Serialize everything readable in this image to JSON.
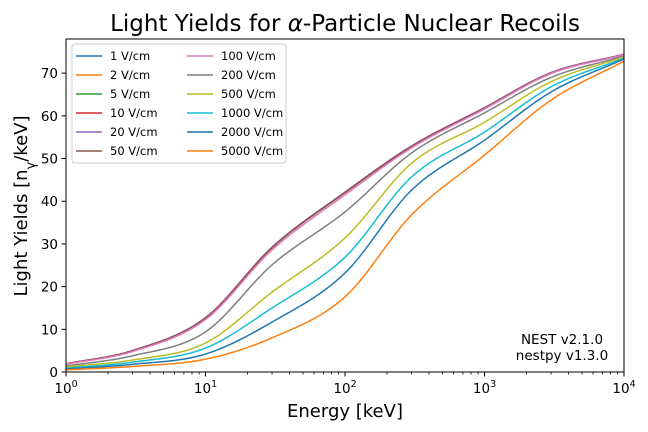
{
  "chart_data": {
    "type": "line",
    "title_prefix": "Light Yields for ",
    "title_symbol": "α",
    "title_suffix": "-Particle Nuclear Recoils",
    "xlabel": "Energy [keV]",
    "ylabel_prefix": "Light Yields [n",
    "ylabel_sub": "γ",
    "ylabel_suffix": "/keV]",
    "xscale": "log",
    "xlim": [
      1,
      10000
    ],
    "ylim": [
      0,
      78
    ],
    "x_ticks": [
      {
        "value": 1,
        "base": "10",
        "exp": "0"
      },
      {
        "value": 10,
        "base": "10",
        "exp": "1"
      },
      {
        "value": 100,
        "base": "10",
        "exp": "2"
      },
      {
        "value": 1000,
        "base": "10",
        "exp": "3"
      },
      {
        "value": 10000,
        "base": "10",
        "exp": "4"
      }
    ],
    "y_ticks": [
      0,
      10,
      20,
      30,
      40,
      50,
      60,
      70
    ],
    "grid": false,
    "legend": {
      "placement": "top-left",
      "columns": 2
    },
    "annotation": [
      "NEST v2.1.0",
      "nestpy v1.3.0"
    ],
    "x": [
      1,
      3,
      10,
      30,
      100,
      300,
      1000,
      3000,
      10000
    ],
    "series": [
      {
        "name": "1 V/cm",
        "color": "#1f77b4",
        "values": [
          1.9,
          5.0,
          12.7,
          29.2,
          42.1,
          52.9,
          61.9,
          70.1,
          74.4
        ]
      },
      {
        "name": "2 V/cm",
        "color": "#ff7f0e",
        "values": [
          1.9,
          5.0,
          12.7,
          29.2,
          42.1,
          52.9,
          61.9,
          70.1,
          74.4
        ]
      },
      {
        "name": "5 V/cm",
        "color": "#2ca02c",
        "values": [
          1.9,
          5.0,
          12.7,
          29.2,
          42.1,
          52.9,
          61.9,
          70.1,
          74.4
        ]
      },
      {
        "name": "10 V/cm",
        "color": "#d62728",
        "values": [
          1.9,
          5.0,
          12.7,
          29.2,
          42.1,
          52.9,
          61.9,
          70.1,
          74.4
        ]
      },
      {
        "name": "20 V/cm",
        "color": "#9467bd",
        "values": [
          1.9,
          5.0,
          12.7,
          29.2,
          42.1,
          52.9,
          61.9,
          70.1,
          74.4
        ]
      },
      {
        "name": "50 V/cm",
        "color": "#8c564b",
        "values": [
          1.9,
          5.0,
          12.6,
          29.1,
          42.0,
          52.8,
          61.8,
          70.0,
          74.3
        ]
      },
      {
        "name": "100 V/cm",
        "color": "#e377c2",
        "values": [
          1.8,
          4.8,
          12.3,
          28.6,
          41.5,
          52.5,
          61.6,
          69.9,
          74.3
        ]
      },
      {
        "name": "200 V/cm",
        "color": "#7f7f7f",
        "values": [
          1.4,
          3.8,
          9.4,
          25.1,
          37.5,
          51.3,
          60.7,
          69.0,
          74.0
        ]
      },
      {
        "name": "500 V/cm",
        "color": "#bcbd22",
        "values": [
          1.2,
          2.8,
          6.8,
          18.7,
          31.4,
          48.9,
          58.5,
          68.0,
          73.8
        ]
      },
      {
        "name": "1000 V/cm",
        "color": "#17becf",
        "values": [
          0.9,
          2.3,
          5.6,
          15.0,
          26.9,
          45.7,
          56.2,
          66.8,
          73.5
        ]
      },
      {
        "name": "2000 V/cm",
        "color": "#1f77b4",
        "values": [
          0.7,
          1.8,
          4.2,
          11.7,
          23.2,
          42.6,
          54.3,
          65.6,
          73.3
        ]
      },
      {
        "name": "5000 V/cm",
        "color": "#ff7f0e",
        "values": [
          0.5,
          1.3,
          3.0,
          8.0,
          17.6,
          36.8,
          50.8,
          63.7,
          72.8
        ]
      }
    ]
  }
}
